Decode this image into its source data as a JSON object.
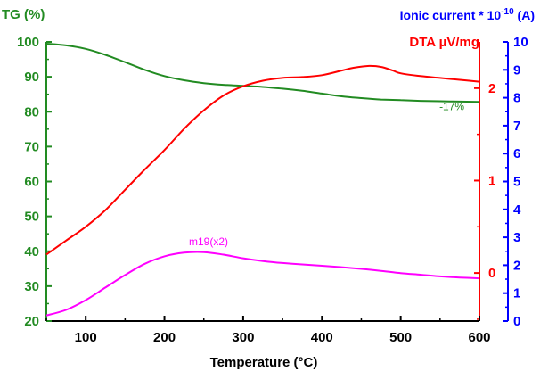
{
  "chart_data": {
    "type": "line",
    "title": "",
    "xlabel": "Temperature (°C)",
    "xlim": [
      50,
      600
    ],
    "x_ticks": [
      100,
      200,
      300,
      400,
      500,
      600
    ],
    "axes": {
      "tg": {
        "label": "TG (%)",
        "color": "#228B22",
        "lim": [
          20,
          100
        ],
        "ticks": [
          20,
          30,
          40,
          50,
          60,
          70,
          80,
          90,
          100
        ],
        "side": "left"
      },
      "dta": {
        "label": "DTA µV/mg",
        "color": "#FF0000",
        "lim": [
          -0.52,
          2.5
        ],
        "ticks": [
          0,
          1,
          2
        ],
        "side": "right"
      },
      "ion": {
        "label_main": "Ionic current * 10",
        "label_exp": "-10",
        "label_unit": " (A)",
        "color": "#0000FF",
        "lim": [
          0,
          10
        ],
        "ticks": [
          0,
          1,
          2,
          3,
          4,
          5,
          6,
          7,
          8,
          9,
          10
        ],
        "side": "right-outer"
      }
    },
    "series": [
      {
        "axis": "tg",
        "color": "#228B22",
        "x": [
          50,
          75,
          100,
          125,
          150,
          175,
          200,
          225,
          250,
          275,
          300,
          325,
          350,
          375,
          400,
          425,
          450,
          475,
          500,
          525,
          550,
          575,
          600
        ],
        "y": [
          99.5,
          99,
          98,
          96.3,
          94.2,
          92,
          90.2,
          89,
          88.2,
          87.7,
          87.4,
          87.1,
          86.6,
          86,
          85.2,
          84.4,
          83.9,
          83.5,
          83.3,
          83.1,
          83,
          82.9,
          82.8
        ]
      },
      {
        "axis": "dta",
        "color": "#FF0000",
        "x": [
          50,
          75,
          100,
          125,
          150,
          175,
          200,
          225,
          250,
          275,
          300,
          325,
          350,
          375,
          400,
          425,
          440,
          460,
          475,
          490,
          500,
          525,
          550,
          575,
          600
        ],
        "y": [
          0.2,
          0.35,
          0.5,
          0.68,
          0.9,
          1.12,
          1.33,
          1.56,
          1.76,
          1.92,
          2.02,
          2.08,
          2.11,
          2.12,
          2.14,
          2.19,
          2.22,
          2.24,
          2.23,
          2.19,
          2.16,
          2.13,
          2.11,
          2.09,
          2.07
        ]
      },
      {
        "axis": "ion",
        "color": "#FF00FF",
        "x": [
          50,
          75,
          100,
          125,
          150,
          175,
          200,
          225,
          250,
          275,
          300,
          325,
          350,
          375,
          400,
          425,
          450,
          475,
          500,
          525,
          550,
          575,
          600
        ],
        "y": [
          0.2,
          0.4,
          0.75,
          1.2,
          1.65,
          2.05,
          2.32,
          2.45,
          2.47,
          2.38,
          2.25,
          2.15,
          2.08,
          2.03,
          1.98,
          1.93,
          1.87,
          1.8,
          1.72,
          1.66,
          1.6,
          1.56,
          1.53
        ]
      }
    ],
    "annotations": [
      {
        "text": "-17%",
        "x": 565,
        "y": 80.5,
        "axis": "tg",
        "color": "#228B22"
      },
      {
        "text": "m19(x2)",
        "x": 256,
        "y": 2.72,
        "axis": "ion",
        "color": "#FF00FF"
      }
    ]
  }
}
